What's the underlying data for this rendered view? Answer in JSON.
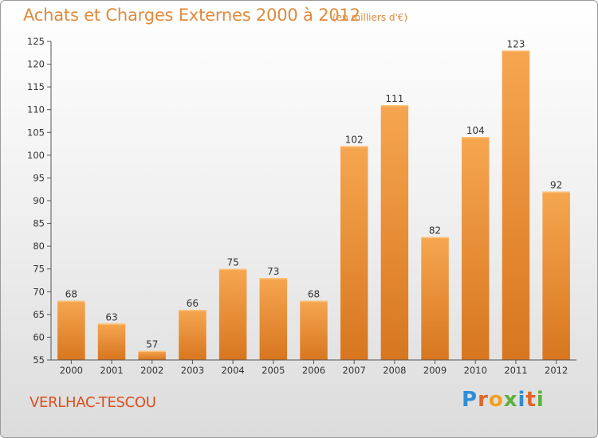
{
  "title": "Achats et Charges Externes 2000 à 2012",
  "subtitle": "(en milliers d'€)",
  "location": "VERLHAC-TESCOU",
  "brand": {
    "letters": [
      "P",
      "r",
      "o",
      "x",
      "i",
      "t",
      "i"
    ],
    "colors": [
      "#2e8fd6",
      "#e0662a",
      "#f0a020",
      "#5bb23a",
      "#2e8fd6",
      "#e0662a",
      "#5bb23a"
    ]
  },
  "colors": {
    "bar": "#f29d45",
    "bar_dark": "#d97a25",
    "accent": "#e08a3b"
  },
  "chart_data": {
    "type": "bar",
    "title": "Achats et Charges Externes 2000 à 2012",
    "subtitle": "(en milliers d'€)",
    "categories": [
      "2000",
      "2001",
      "2002",
      "2003",
      "2004",
      "2005",
      "2006",
      "2007",
      "2008",
      "2009",
      "2010",
      "2011",
      "2012"
    ],
    "values": [
      68,
      63,
      57,
      66,
      75,
      73,
      68,
      102,
      111,
      82,
      104,
      123,
      92
    ],
    "ylim": [
      55,
      125
    ],
    "yticks": [
      55,
      60,
      65,
      70,
      75,
      80,
      85,
      90,
      95,
      100,
      105,
      110,
      115,
      120,
      125
    ],
    "grid": false,
    "legend": "none"
  }
}
